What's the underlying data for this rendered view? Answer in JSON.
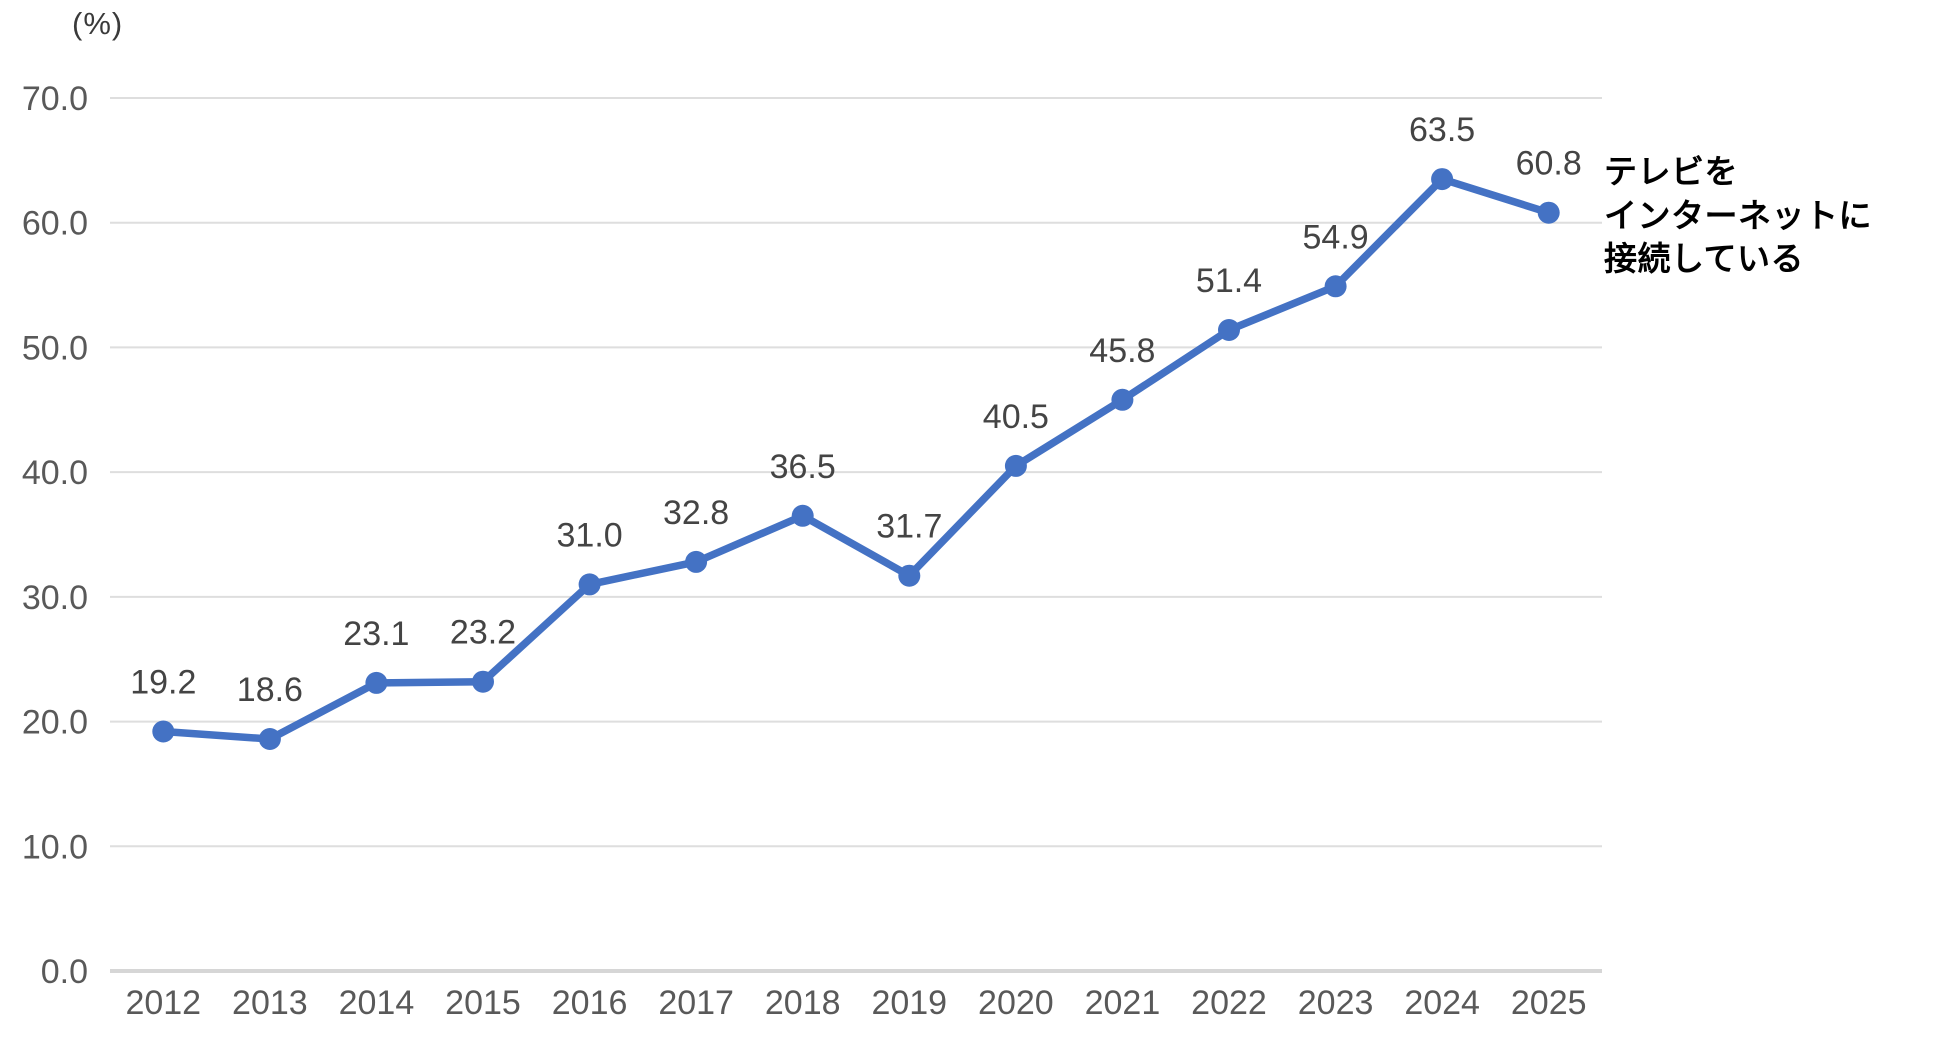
{
  "chart_data": {
    "type": "line",
    "title": "",
    "unit_label": "(%)",
    "xlabel": "",
    "ylabel": "(%)",
    "ylim": [
      0,
      70
    ],
    "y_tick_step": 10,
    "y_tick_labels": [
      "0.0",
      "10.0",
      "20.0",
      "30.0",
      "40.0",
      "50.0",
      "60.0",
      "70.0"
    ],
    "categories": [
      "2012",
      "2013",
      "2014",
      "2015",
      "2016",
      "2017",
      "2018",
      "2019",
      "2020",
      "2021",
      "2022",
      "2023",
      "2024",
      "2025"
    ],
    "series": [
      {
        "name": "テレビをインターネットに接続している",
        "values": [
          19.2,
          18.6,
          23.1,
          23.2,
          31.0,
          32.8,
          36.5,
          31.7,
          40.5,
          45.8,
          51.4,
          54.9,
          63.5,
          60.8
        ],
        "point_labels": [
          "19.2",
          "18.6",
          "23.1",
          "23.2",
          "31.0",
          "32.8",
          "36.5",
          "31.7",
          "40.5",
          "45.8",
          "51.4",
          "54.9",
          "63.5",
          "60.8"
        ]
      }
    ],
    "annotation": "テレビを\nインターネットに\n接続している",
    "legend_position": "none",
    "grid": "horizontal",
    "colors": {
      "line": "#4472C4",
      "marker": "#4472C4",
      "gridline": "#DEDEDE",
      "axis_line": "#D6D6D6",
      "tick_label": "#595959",
      "data_label": "#444444",
      "annotation_text": "#000000",
      "background": "#FFFFFF"
    }
  }
}
